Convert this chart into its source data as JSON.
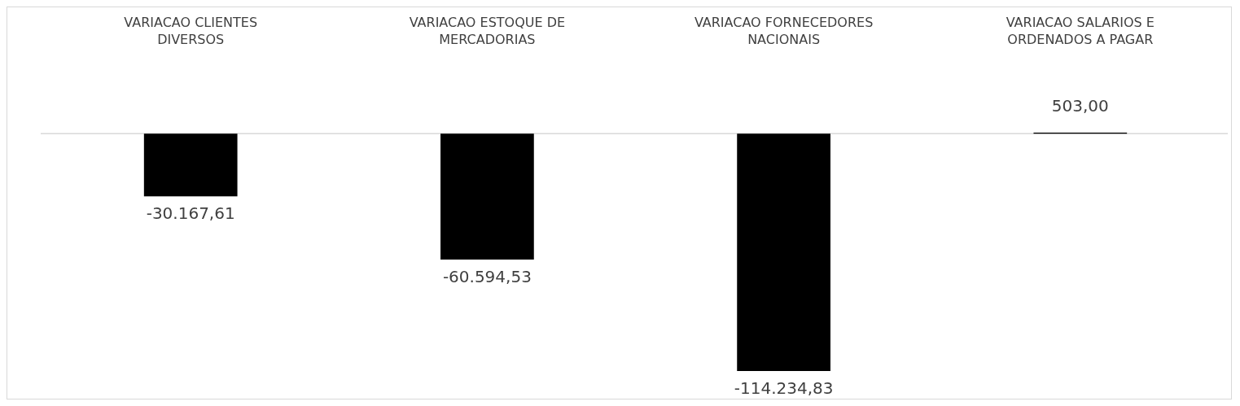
{
  "chart_data": {
    "type": "bar",
    "categories": [
      "VARIACAO CLIENTES DIVERSOS",
      "VARIACAO ESTOQUE DE MERCADORIAS",
      "VARIACAO FORNECEDORES NACIONAIS",
      "VARIACAO SALARIOS E ORDENADOS A PAGAR"
    ],
    "values": [
      -30167.61,
      -60594.53,
      -114234.83,
      503
    ],
    "value_labels": [
      "-30.167,61",
      "-60.594,53",
      "-114.234,83",
      "503,00"
    ],
    "color": "#000000"
  }
}
